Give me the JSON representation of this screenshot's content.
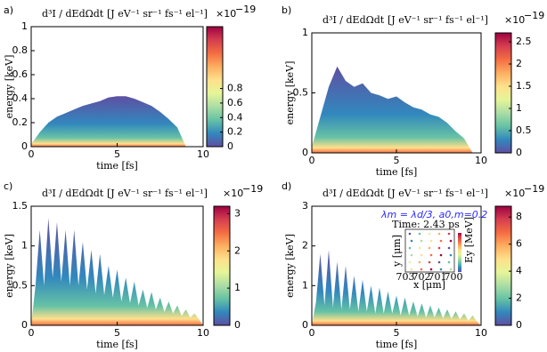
{
  "chart_data": [
    {
      "type": "area",
      "panel_label": "a)",
      "title": "d³I / dEdΩdt",
      "title_unit": "[J eV⁻¹ sr⁻¹ fs⁻¹ el⁻¹]",
      "xlabel": "time [fs]",
      "ylabel": "energy [keV]",
      "xlim": [
        0,
        10
      ],
      "ylim": [
        0,
        1
      ],
      "xticks": [
        0,
        5,
        10
      ],
      "yticks": [
        0,
        0.2,
        0.4,
        0.6,
        0.8,
        1
      ],
      "x": [
        0,
        0.5,
        1,
        1.5,
        2,
        2.5,
        3,
        3.5,
        4,
        4.5,
        5,
        5.5,
        6,
        6.5,
        7,
        7.5,
        8,
        8.5,
        9
      ],
      "values": [
        0.02,
        0.12,
        0.2,
        0.25,
        0.28,
        0.31,
        0.34,
        0.36,
        0.38,
        0.41,
        0.42,
        0.42,
        0.4,
        0.37,
        0.34,
        0.29,
        0.23,
        0.16,
        0
      ],
      "colorbar": {
        "lim": [
          0,
          1.65
        ],
        "ticks": [
          0,
          0.2,
          0.4,
          0.6,
          0.8
        ],
        "scale": "×10",
        "exponent": "−19"
      }
    },
    {
      "type": "area",
      "panel_label": "b)",
      "title": "d³I / dEdΩdt",
      "title_unit": "[J eV⁻¹ sr⁻¹ fs⁻¹ el⁻¹]",
      "xlabel": "time [fs]",
      "ylabel": "energy [keV]",
      "xlim": [
        0,
        10
      ],
      "ylim": [
        0,
        1
      ],
      "xticks": [
        0,
        5,
        10
      ],
      "yticks": [
        0,
        0.5,
        1
      ],
      "x": [
        0,
        0.5,
        1,
        1.5,
        2,
        2.5,
        3,
        3.5,
        4,
        4.5,
        5,
        5.5,
        6,
        6.5,
        7,
        7.5,
        8,
        8.5,
        9,
        9.5
      ],
      "values": [
        0.05,
        0.3,
        0.55,
        0.72,
        0.6,
        0.55,
        0.58,
        0.5,
        0.48,
        0.45,
        0.47,
        0.42,
        0.38,
        0.36,
        0.32,
        0.3,
        0.25,
        0.18,
        0.12,
        0
      ],
      "colorbar": {
        "lim": [
          0,
          2.7
        ],
        "ticks": [
          0,
          0.5,
          1,
          1.5,
          2,
          2.5
        ],
        "scale": "×10",
        "exponent": "−19"
      }
    },
    {
      "type": "area",
      "panel_label": "c)",
      "title": "d³I / dEdΩdt",
      "title_unit": "[J eV⁻¹ sr⁻¹ fs⁻¹ el⁻¹]",
      "xlabel": "time [fs]",
      "ylabel": "energy [keV]",
      "xlim": [
        0,
        10
      ],
      "ylim": [
        0,
        1.5
      ],
      "xticks": [
        0,
        5,
        10
      ],
      "yticks": [
        0,
        0.5,
        1,
        1.5
      ],
      "x": [
        0,
        0.25,
        0.5,
        0.75,
        1,
        1.25,
        1.5,
        1.75,
        2,
        2.25,
        2.5,
        2.75,
        3,
        3.25,
        3.5,
        3.75,
        4,
        4.25,
        4.5,
        4.75,
        5,
        5.25,
        5.5,
        5.75,
        6,
        6.25,
        6.5,
        6.75,
        7,
        7.25,
        7.5,
        7.75,
        8,
        8.25,
        8.5,
        8.75,
        9,
        9.25,
        9.5,
        9.75,
        10
      ],
      "values": [
        0,
        0.5,
        1.2,
        0.5,
        1.35,
        0.6,
        1.3,
        0.55,
        1.2,
        0.5,
        1.2,
        0.5,
        1.05,
        0.45,
        0.95,
        0.4,
        0.9,
        0.38,
        0.75,
        0.35,
        0.7,
        0.3,
        0.6,
        0.28,
        0.55,
        0.25,
        0.45,
        0.22,
        0.42,
        0.2,
        0.35,
        0.17,
        0.3,
        0.15,
        0.25,
        0.12,
        0.2,
        0.1,
        0.15,
        0.08,
        0
      ],
      "colorbar": {
        "lim": [
          0,
          3.2
        ],
        "ticks": [
          0,
          1,
          2,
          3
        ],
        "scale": "×10",
        "exponent": "−19"
      }
    },
    {
      "type": "area",
      "panel_label": "d)",
      "title": "d³I / dEdΩdt",
      "title_unit": "[J eV⁻¹ sr⁻¹ fs⁻¹ el⁻¹]",
      "xlabel": "time [fs]",
      "ylabel": "energy [keV]",
      "xlim": [
        0,
        10
      ],
      "ylim": [
        0,
        3
      ],
      "xticks": [
        0,
        5,
        10
      ],
      "yticks": [
        0,
        1,
        2,
        3
      ],
      "x": [
        0,
        0.25,
        0.5,
        0.75,
        1,
        1.25,
        1.5,
        1.75,
        2,
        2.25,
        2.5,
        2.75,
        3,
        3.25,
        3.5,
        3.75,
        4,
        4.25,
        4.5,
        4.75,
        5,
        5.25,
        5.5,
        5.75,
        6,
        6.25,
        6.5,
        6.75,
        7,
        7.25,
        7.5,
        7.75,
        8,
        8.25,
        8.5,
        8.75,
        9,
        9.25,
        9.5,
        9.75,
        10
      ],
      "values": [
        0,
        0.6,
        1.8,
        0.5,
        1.9,
        0.45,
        1.6,
        0.4,
        1.5,
        0.4,
        1.25,
        0.35,
        1.15,
        0.35,
        1.0,
        0.3,
        0.95,
        0.3,
        0.85,
        0.3,
        0.75,
        0.25,
        0.7,
        0.25,
        0.6,
        0.22,
        0.55,
        0.2,
        0.5,
        0.2,
        0.45,
        0.18,
        0.4,
        0.17,
        0.35,
        0.15,
        0.3,
        0.12,
        0.25,
        0.1,
        0
      ],
      "colorbar": {
        "lim": [
          0,
          8.8
        ],
        "ticks": [
          0,
          2,
          4,
          6,
          8
        ],
        "scale": "×10",
        "exponent": "−19"
      },
      "inset": {
        "annotation": "λm = λd/3, a0,m=0.2",
        "title": "Time: 2.43 ps",
        "xticks": [
          "703",
          "702",
          "701",
          "700"
        ],
        "xlabel": "x [μm]",
        "ylabel": "y [μm]",
        "cbar_label": "Ey [MeV]"
      }
    }
  ],
  "colormap": [
    "#5e4fa2",
    "#3288bd",
    "#66c2a5",
    "#abdda4",
    "#e6f598",
    "#fee08b",
    "#fdae61",
    "#f46d43",
    "#d53e4f",
    "#9e0142"
  ]
}
